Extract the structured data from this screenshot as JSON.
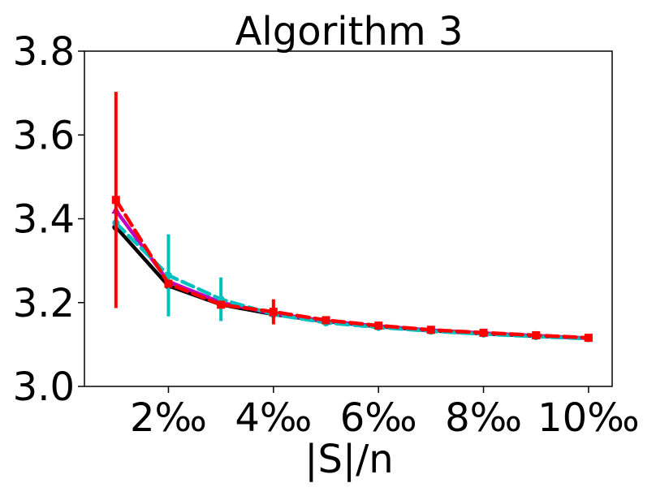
{
  "chart_data": {
    "type": "line",
    "title": "Algorithm 3",
    "xlabel": "|S|/n",
    "ylabel": "",
    "x": [
      1,
      2,
      3,
      4,
      5,
      6,
      7,
      8,
      9,
      10
    ],
    "xlim": [
      0.4,
      10.45
    ],
    "ylim": [
      3.0,
      3.8
    ],
    "x_ticks": [
      2,
      4,
      6,
      8,
      10
    ],
    "x_tick_labels": [
      "2‰",
      "4‰",
      "6‰",
      "8‰",
      "10‰"
    ],
    "y_ticks": [
      3.0,
      3.2,
      3.4,
      3.6,
      3.8
    ],
    "y_tick_labels": [
      "3.0",
      "3.2",
      "3.4",
      "3.6",
      "3.8"
    ],
    "grid": false,
    "series": [
      {
        "color": "#000000",
        "line_style": "solid",
        "marker": "circle",
        "values": [
          3.38,
          3.24,
          3.195,
          3.172,
          3.155,
          3.143,
          3.133,
          3.126,
          3.12,
          3.115
        ],
        "error": [
          0.0,
          0.0,
          0.0,
          0.0,
          0.0,
          0.0,
          0.0,
          0.0,
          0.0,
          0.0
        ]
      },
      {
        "color": "#c000c0",
        "line_style": "solid",
        "marker": "triangle",
        "values": [
          3.42,
          3.25,
          3.2,
          3.174,
          3.156,
          3.144,
          3.134,
          3.127,
          3.121,
          3.115
        ],
        "error": [
          0.0,
          0.0,
          0.0,
          0.0,
          0.0,
          0.0,
          0.0,
          0.0,
          0.0,
          0.0
        ]
      },
      {
        "color": "#00bfbf",
        "line_style": "dashed",
        "marker": "circle",
        "values": [
          3.39,
          3.265,
          3.208,
          3.172,
          3.152,
          3.141,
          3.132,
          3.125,
          3.119,
          3.114
        ],
        "error": [
          0.0,
          0.098,
          0.052,
          0.01,
          0.005,
          0.003,
          0.003,
          0.002,
          0.002,
          0.002
        ]
      },
      {
        "color": "#ff0000",
        "line_style": "dashed",
        "marker": "square",
        "values": [
          3.445,
          3.245,
          3.195,
          3.178,
          3.158,
          3.145,
          3.135,
          3.128,
          3.122,
          3.116
        ],
        "error": [
          0.258,
          0.006,
          0.004,
          0.03,
          0.008,
          0.004,
          0.003,
          0.003,
          0.003,
          0.003
        ]
      }
    ]
  }
}
